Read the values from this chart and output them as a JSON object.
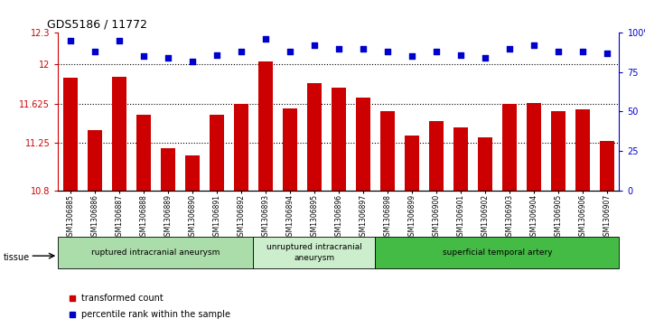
{
  "title": "GDS5186 / 11772",
  "samples": [
    "GSM1306885",
    "GSM1306886",
    "GSM1306887",
    "GSM1306888",
    "GSM1306889",
    "GSM1306890",
    "GSM1306891",
    "GSM1306892",
    "GSM1306893",
    "GSM1306894",
    "GSM1306895",
    "GSM1306896",
    "GSM1306897",
    "GSM1306898",
    "GSM1306899",
    "GSM1306900",
    "GSM1306901",
    "GSM1306902",
    "GSM1306903",
    "GSM1306904",
    "GSM1306905",
    "GSM1306906",
    "GSM1306907"
  ],
  "bar_values": [
    11.87,
    11.37,
    11.88,
    11.52,
    11.2,
    11.13,
    11.52,
    11.62,
    12.03,
    11.58,
    11.82,
    11.78,
    11.68,
    11.55,
    11.32,
    11.46,
    11.4,
    11.3,
    11.62,
    11.63,
    11.55,
    11.57,
    11.27
  ],
  "percentile_values": [
    95,
    88,
    95,
    85,
    84,
    82,
    86,
    88,
    96,
    88,
    92,
    90,
    90,
    88,
    85,
    88,
    86,
    84,
    90,
    92,
    88,
    88,
    87
  ],
  "bar_color": "#cc0000",
  "percentile_color": "#0000cc",
  "ylim_left": [
    10.8,
    12.3
  ],
  "ylim_right": [
    0,
    100
  ],
  "yticks_left": [
    10.8,
    11.25,
    11.625,
    12.0,
    12.3
  ],
  "ytick_labels_left": [
    "10.8",
    "11.25",
    "11.625",
    "12",
    "12.3"
  ],
  "yticks_right": [
    0,
    25,
    50,
    75,
    100
  ],
  "ytick_labels_right": [
    "0",
    "25",
    "50",
    "75",
    "100%"
  ],
  "grid_lines": [
    11.25,
    11.625,
    12.0
  ],
  "groups": [
    {
      "label": "ruptured intracranial aneurysm",
      "start": 0,
      "end": 8,
      "color": "#aaddaa"
    },
    {
      "label": "unruptured intracranial\naneurysm",
      "start": 8,
      "end": 13,
      "color": "#cceecc"
    },
    {
      "label": "superficial temporal artery",
      "start": 13,
      "end": 23,
      "color": "#44bb44"
    }
  ],
  "legend_items": [
    {
      "label": "transformed count",
      "color": "#cc0000"
    },
    {
      "label": "percentile rank within the sample",
      "color": "#0000cc"
    }
  ],
  "tissue_label": "tissue",
  "fig_bg": "#ffffff",
  "plot_bg": "#ffffff",
  "xtick_bg": "#d0d0d0"
}
